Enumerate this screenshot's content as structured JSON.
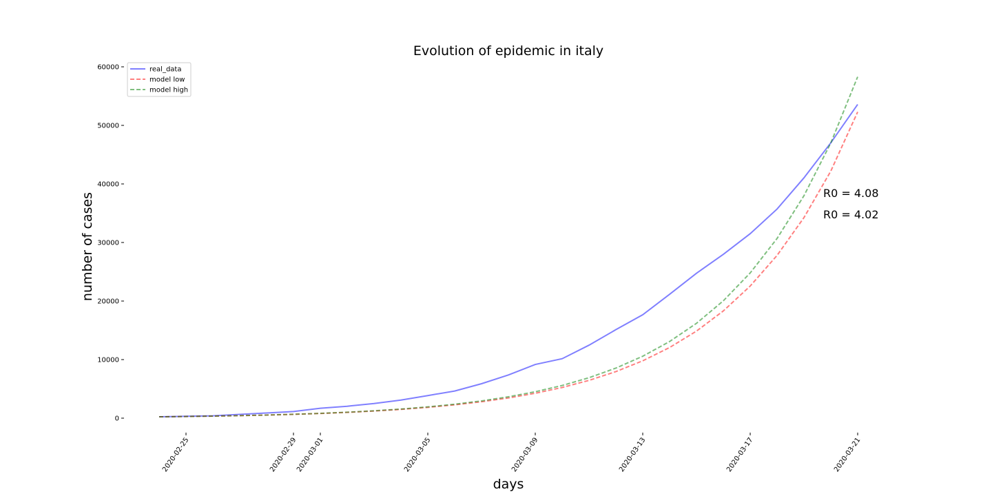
{
  "chart_data": {
    "type": "line",
    "title": "Evolution of epidemic in italy",
    "x_label": "days",
    "y_label": "number of cases",
    "x": [
      "2020-02-24",
      "2020-02-25",
      "2020-02-26",
      "2020-02-27",
      "2020-02-28",
      "2020-02-29",
      "2020-03-01",
      "2020-03-02",
      "2020-03-03",
      "2020-03-04",
      "2020-03-05",
      "2020-03-06",
      "2020-03-07",
      "2020-03-08",
      "2020-03-09",
      "2020-03-10",
      "2020-03-11",
      "2020-03-12",
      "2020-03-13",
      "2020-03-14",
      "2020-03-15",
      "2020-03-16",
      "2020-03-17",
      "2020-03-18",
      "2020-03-19",
      "2020-03-20",
      "2020-03-21"
    ],
    "series": [
      {
        "name": "real_data",
        "color": "#0000ff",
        "dash": false,
        "values": [
          229,
          322,
          400,
          650,
          888,
          1128,
          1694,
          2036,
          2502,
          3089,
          3858,
          4636,
          5883,
          7375,
          9172,
          10149,
          12462,
          15113,
          17660,
          21157,
          24747,
          27980,
          31506,
          35713,
          41035,
          47021,
          53578
        ]
      },
      {
        "name": "model low",
        "color": "#ff0000",
        "dash": true,
        "values": [
          229,
          282,
          348,
          428,
          528,
          650,
          801,
          987,
          1216,
          1498,
          1845,
          2273,
          2801,
          3450,
          4251,
          5237,
          6452,
          7949,
          9793,
          12065,
          14864,
          18313,
          22561,
          27795,
          34243,
          42187,
          52300
        ]
      },
      {
        "name": "model high",
        "color": "#008000",
        "dash": true,
        "values": [
          229,
          283,
          350,
          433,
          536,
          663,
          820,
          1015,
          1256,
          1554,
          1923,
          2380,
          2945,
          3644,
          4510,
          5581,
          6906,
          8546,
          10576,
          13087,
          16195,
          20041,
          24800,
          30690,
          37978,
          46996,
          58300
        ]
      }
    ],
    "annotations": [
      {
        "text": "R0 = 4.08",
        "color": "#008000",
        "x": "2020-03-21",
        "y": 38500
      },
      {
        "text": "R0 = 4.02",
        "color": "#ff0000",
        "x": "2020-03-21",
        "y": 34800
      }
    ],
    "xlim": [
      "2020-02-24",
      "2020-03-21"
    ],
    "xticks": [
      "2020-02-25",
      "2020-02-29",
      "2020-03-01",
      "2020-03-05",
      "2020-03-09",
      "2020-03-13",
      "2020-03-17",
      "2020-03-21"
    ],
    "ylim": [
      0,
      60000
    ],
    "yticks": [
      0,
      10000,
      20000,
      30000,
      40000,
      50000,
      60000
    ],
    "legend": "upper left"
  }
}
